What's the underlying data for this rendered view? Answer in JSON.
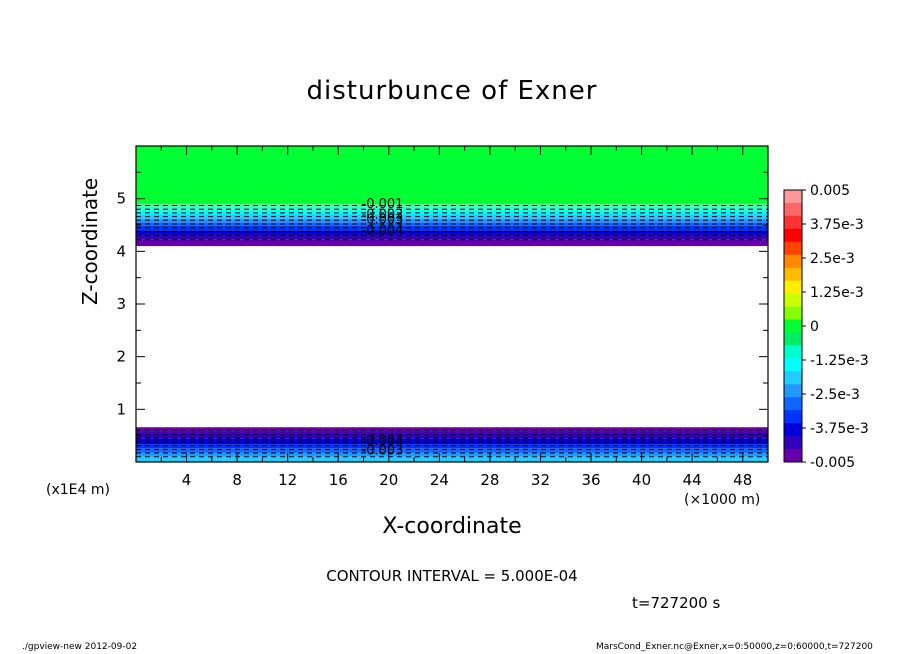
{
  "chart_data": {
    "type": "heatmap",
    "title": "disturbunce of Exner",
    "xlabel": "X-coordinate",
    "ylabel": "Z-coordinate",
    "x_unit": "(×1000 m)",
    "y_unit": "(x1E4 m)",
    "xlim": [
      0,
      50
    ],
    "ylim": [
      0,
      6
    ],
    "x_ticks": [
      4,
      8,
      12,
      16,
      20,
      24,
      28,
      32,
      36,
      40,
      44,
      48
    ],
    "y_ticks": [
      1,
      2,
      3,
      4,
      5
    ],
    "bands": [
      {
        "z0": 4.9,
        "z1": 6.0,
        "color": "#00ff33"
      },
      {
        "z0": 4.85,
        "z1": 4.9,
        "color": "#44ff99"
      },
      {
        "z0": 4.78,
        "z1": 4.85,
        "color": "#33ffcc"
      },
      {
        "z0": 4.7,
        "z1": 4.78,
        "color": "#00ffee"
      },
      {
        "z0": 4.62,
        "z1": 4.7,
        "color": "#22ccff"
      },
      {
        "z0": 4.55,
        "z1": 4.62,
        "color": "#2299ff"
      },
      {
        "z0": 4.48,
        "z1": 4.55,
        "color": "#1166ff"
      },
      {
        "z0": 4.4,
        "z1": 4.48,
        "color": "#0033ff"
      },
      {
        "z0": 4.32,
        "z1": 4.4,
        "color": "#0000dd"
      },
      {
        "z0": 4.22,
        "z1": 4.32,
        "color": "#3300bb"
      },
      {
        "z0": 4.1,
        "z1": 4.22,
        "color": "#6600aa"
      },
      {
        "z0": 0.0,
        "z1": 0.1,
        "color": "#22ccff"
      },
      {
        "z0": 0.1,
        "z1": 0.18,
        "color": "#2299ff"
      },
      {
        "z0": 0.18,
        "z1": 0.26,
        "color": "#1166ff"
      },
      {
        "z0": 0.26,
        "z1": 0.34,
        "color": "#0033ff"
      },
      {
        "z0": 0.34,
        "z1": 0.44,
        "color": "#0000dd"
      },
      {
        "z0": 0.44,
        "z1": 0.56,
        "color": "#3300bb"
      },
      {
        "z0": 0.56,
        "z1": 0.66,
        "color": "#6600aa"
      }
    ],
    "contour_levels_z": [
      4.87,
      4.8,
      4.73,
      4.66,
      4.59,
      4.52,
      4.45,
      4.38,
      4.3,
      4.22,
      0.6,
      0.52,
      0.45,
      0.38,
      0.31,
      0.24,
      0.17,
      0.1
    ],
    "contour_labels": [
      {
        "x": 19.5,
        "z": 4.9,
        "text": "-0.001"
      },
      {
        "x": 19.5,
        "z": 4.7,
        "text": "-0.002"
      },
      {
        "x": 19.5,
        "z": 4.6,
        "text": "-0.003"
      },
      {
        "x": 19.5,
        "z": 4.4,
        "text": "-0.004"
      },
      {
        "x": 19.5,
        "z": 0.4,
        "text": "-0.004"
      },
      {
        "x": 19.5,
        "z": 0.22,
        "text": "-0.003"
      }
    ],
    "colorbar": {
      "colors": [
        "#ff9999",
        "#ff6666",
        "#ff3333",
        "#ff0000",
        "#ff4400",
        "#ff8800",
        "#ffbb00",
        "#ffee00",
        "#ccff00",
        "#88ff00",
        "#00ff33",
        "#00ee66",
        "#00ffcc",
        "#00ffff",
        "#22ccff",
        "#2299ff",
        "#1166ff",
        "#0033ff",
        "#0000dd",
        "#3300bb",
        "#6600aa"
      ],
      "tick_labels": [
        "0.005",
        "3.75e-3",
        "2.5e-3",
        "1.25e-3",
        "0",
        "-1.25e-3",
        "-2.5e-3",
        "-3.75e-3",
        "-0.005"
      ]
    }
  },
  "annotations": {
    "contour_interval": "CONTOUR INTERVAL = 5.000E-04",
    "time": "t=727200 s",
    "footer_left": "./gpview-new  2012-09-02",
    "footer_right": "MarsCond_Exner.nc@Exner,x=0:50000,z=0:60000,t=727200"
  }
}
